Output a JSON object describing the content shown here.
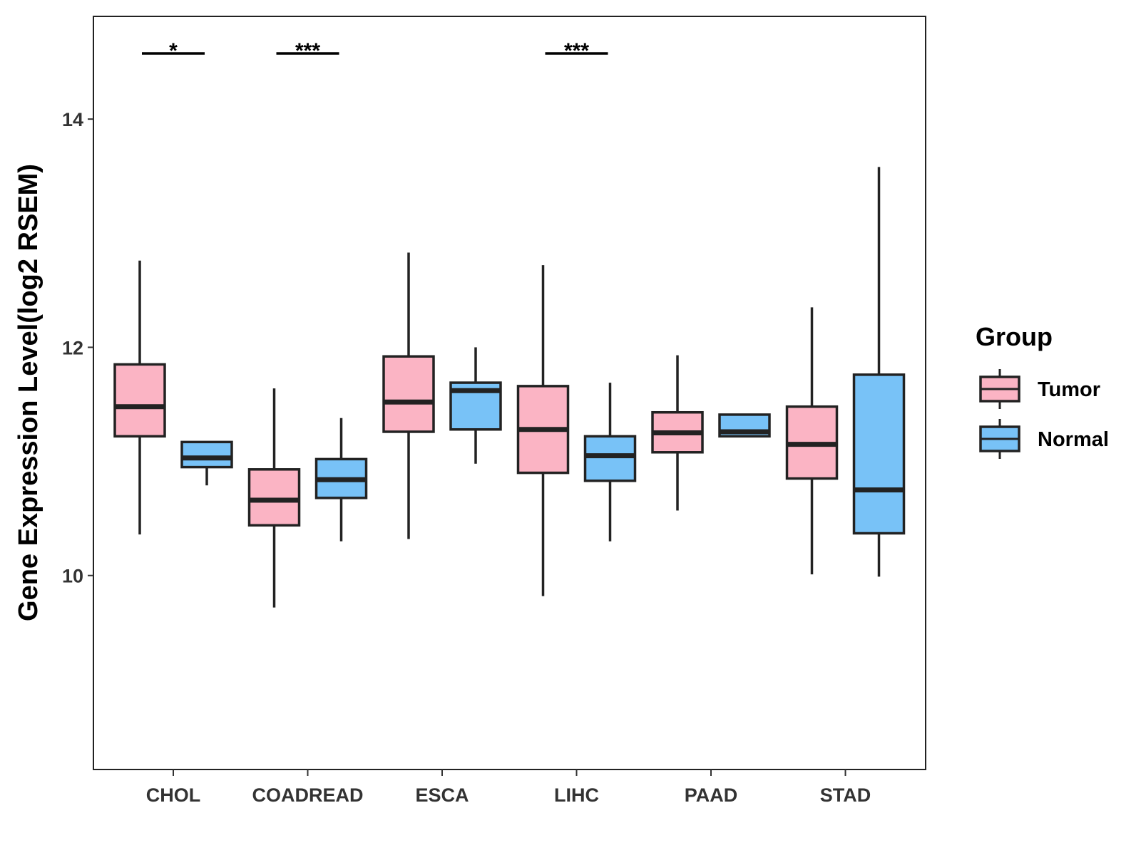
{
  "chart_data": {
    "type": "boxplot",
    "title": "",
    "xlabel": "",
    "ylabel": "Gene Expression Level(log2 RSEM)",
    "ylim": [
      8.3,
      14.9
    ],
    "yticks": [
      10,
      12,
      14
    ],
    "grid": false,
    "categories": [
      "CHOL",
      "COADREAD",
      "ESCA",
      "LIHC",
      "PAAD",
      "STAD"
    ],
    "legend": {
      "title": "Group",
      "position": "right",
      "entries": [
        {
          "name": "Tumor",
          "color": "#fbb4c4"
        },
        {
          "name": "Normal",
          "color": "#78c2f7"
        }
      ]
    },
    "series": [
      {
        "name": "Tumor",
        "color": "#fbb4c4",
        "boxes": [
          {
            "min": 10.36,
            "q1": 11.22,
            "median": 11.48,
            "q3": 11.85,
            "max": 12.76
          },
          {
            "min": 9.72,
            "q1": 10.44,
            "median": 10.66,
            "q3": 10.93,
            "max": 11.64
          },
          {
            "min": 10.32,
            "q1": 11.26,
            "median": 11.52,
            "q3": 11.92,
            "max": 12.83
          },
          {
            "min": 9.82,
            "q1": 10.9,
            "median": 11.28,
            "q3": 11.66,
            "max": 12.72
          },
          {
            "min": 10.57,
            "q1": 11.08,
            "median": 11.25,
            "q3": 11.43,
            "max": 11.93
          },
          {
            "min": 10.01,
            "q1": 10.85,
            "median": 11.15,
            "q3": 11.48,
            "max": 12.35
          }
        ]
      },
      {
        "name": "Normal",
        "color": "#78c2f7",
        "boxes": [
          {
            "min": 10.79,
            "q1": 10.95,
            "median": 11.03,
            "q3": 11.17,
            "max": 11.17
          },
          {
            "min": 10.3,
            "q1": 10.68,
            "median": 10.84,
            "q3": 11.02,
            "max": 11.38
          },
          {
            "min": 10.98,
            "q1": 11.28,
            "median": 11.62,
            "q3": 11.69,
            "max": 12.0
          },
          {
            "min": 10.3,
            "q1": 10.83,
            "median": 11.05,
            "q3": 11.22,
            "max": 11.69
          },
          {
            "min": 11.22,
            "q1": 11.22,
            "median": 11.26,
            "q3": 11.41,
            "max": 11.41
          },
          {
            "min": 9.99,
            "q1": 10.37,
            "median": 10.75,
            "q3": 11.76,
            "max": 13.58
          }
        ]
      }
    ],
    "annotations": [
      {
        "category": "CHOL",
        "label": "*"
      },
      {
        "category": "COADREAD",
        "label": "***"
      },
      {
        "category": "LIHC",
        "label": "***"
      }
    ]
  }
}
